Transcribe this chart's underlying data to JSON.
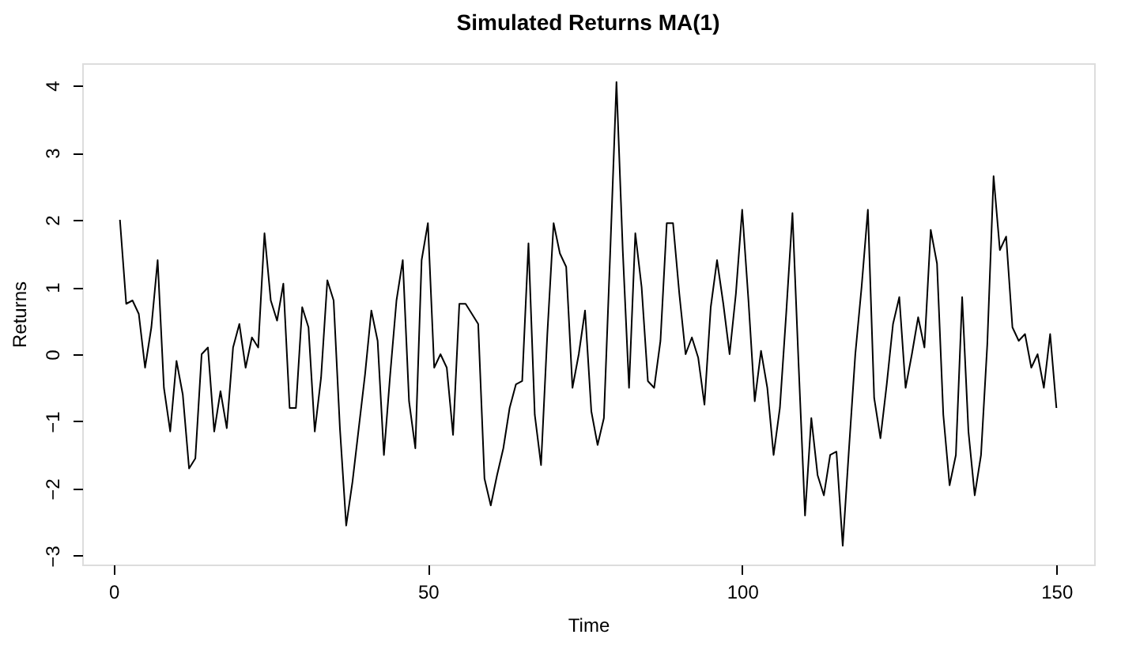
{
  "chart_data": {
    "type": "line",
    "title": "Simulated Returns MA(1)",
    "xlabel": "Time",
    "ylabel": "Returns",
    "x": [
      1,
      2,
      3,
      4,
      5,
      6,
      7,
      8,
      9,
      10,
      11,
      12,
      13,
      14,
      15,
      16,
      17,
      18,
      19,
      20,
      21,
      22,
      23,
      24,
      25,
      26,
      27,
      28,
      29,
      30,
      31,
      32,
      33,
      34,
      35,
      36,
      37,
      38,
      39,
      40,
      41,
      42,
      43,
      44,
      45,
      46,
      47,
      48,
      49,
      50,
      51,
      52,
      53,
      54,
      55,
      56,
      57,
      58,
      59,
      60,
      61,
      62,
      63,
      64,
      65,
      66,
      67,
      68,
      69,
      70,
      71,
      72,
      73,
      74,
      75,
      76,
      77,
      78,
      79,
      80,
      81,
      82,
      83,
      84,
      85,
      86,
      87,
      88,
      89,
      90,
      91,
      92,
      93,
      94,
      95,
      96,
      97,
      98,
      99,
      100,
      101,
      102,
      103,
      104,
      105,
      106,
      107,
      108,
      109,
      110,
      111,
      112,
      113,
      114,
      115,
      116,
      117,
      118,
      119,
      120,
      121,
      122,
      123,
      124,
      125,
      126,
      127,
      128,
      129,
      130,
      131,
      132,
      133,
      134,
      135,
      136,
      137,
      138,
      139,
      140,
      141,
      142,
      143,
      144,
      145,
      146,
      147,
      148,
      149,
      150
    ],
    "series": [
      {
        "color": "#000000",
        "values": [
          2.0,
          0.75,
          0.8,
          0.6,
          -0.2,
          0.4,
          1.4,
          -0.5,
          -1.15,
          -0.1,
          -0.6,
          -1.7,
          -1.55,
          0.0,
          0.1,
          -1.15,
          -0.55,
          -1.1,
          0.1,
          0.45,
          -0.2,
          0.25,
          0.1,
          1.8,
          0.8,
          0.5,
          1.05,
          -0.8,
          -0.8,
          0.7,
          0.4,
          -1.15,
          -0.35,
          1.1,
          0.8,
          -1.1,
          -2.55,
          -1.9,
          -1.1,
          -0.3,
          0.65,
          0.2,
          -1.5,
          -0.3,
          0.8,
          1.4,
          -0.7,
          -1.4,
          1.4,
          1.95,
          -0.2,
          0.0,
          -0.2,
          -1.2,
          0.75,
          0.75,
          0.6,
          0.45,
          -1.85,
          -2.25,
          -1.8,
          -1.4,
          -0.8,
          -0.45,
          -0.4,
          1.65,
          -0.9,
          -1.65,
          0.3,
          1.95,
          1.5,
          1.3,
          -0.5,
          0.0,
          0.65,
          -0.85,
          -1.35,
          -0.95,
          1.5,
          4.05,
          1.55,
          -0.5,
          1.8,
          1.0,
          -0.4,
          -0.5,
          0.2,
          1.95,
          1.95,
          0.9,
          0.0,
          0.25,
          -0.05,
          -0.75,
          0.7,
          1.4,
          0.75,
          0.0,
          0.9,
          2.15,
          0.8,
          -0.7,
          0.05,
          -0.5,
          -1.5,
          -0.8,
          0.6,
          2.1,
          -0.2,
          -2.4,
          -0.95,
          -1.8,
          -2.1,
          -1.5,
          -1.45,
          -2.85,
          -1.4,
          0.0,
          1.0,
          2.15,
          -0.65,
          -1.25,
          -0.45,
          0.45,
          0.85,
          -0.5,
          0.0,
          0.55,
          0.1,
          1.85,
          1.35,
          -0.9,
          -1.95,
          -1.5,
          0.85,
          -1.15,
          -2.1,
          -1.5,
          0.15,
          2.65,
          1.55,
          1.75,
          0.4,
          0.2,
          0.3,
          -0.2,
          0.0,
          -0.5,
          0.3,
          -0.8
        ]
      }
    ],
    "xlim": [
      -5,
      156
    ],
    "xticks": [
      0,
      50,
      100,
      150
    ],
    "ylim": [
      -3.13,
      4.33
    ],
    "yticks": [
      -3,
      -2,
      -1,
      0,
      1,
      2,
      3,
      4
    ],
    "grid": false,
    "marker": "none",
    "line_style": "solid"
  }
}
